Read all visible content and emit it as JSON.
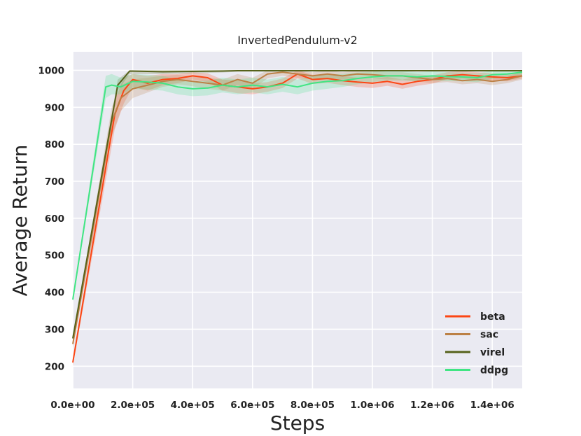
{
  "chart_data": {
    "type": "line",
    "title": "InvertedPendulum-v2",
    "xlabel": "Steps",
    "ylabel": "Average Return",
    "xlim": [
      0,
      1500000
    ],
    "ylim": [
      140,
      1050
    ],
    "xticks": [
      0,
      200000,
      400000,
      600000,
      800000,
      1000000,
      1200000,
      1400000
    ],
    "xtick_labels": [
      "0.0e+00",
      "2.0e+05",
      "4.0e+05",
      "6.0e+05",
      "8.0e+05",
      "1.0e+06",
      "1.2e+06",
      "1.4e+06"
    ],
    "yticks": [
      200,
      300,
      400,
      500,
      600,
      700,
      800,
      900,
      1000
    ],
    "ytick_labels": [
      "200",
      "300",
      "400",
      "500",
      "600",
      "700",
      "800",
      "900",
      "1000"
    ],
    "grid": true,
    "legend_position": "bottom-right",
    "series": [
      {
        "name": "beta",
        "color": "#fc4614",
        "x": [
          0,
          140000,
          170000,
          200000,
          250000,
          300000,
          350000,
          400000,
          450000,
          500000,
          550000,
          600000,
          650000,
          700000,
          750000,
          800000,
          850000,
          900000,
          950000,
          1000000,
          1050000,
          1100000,
          1150000,
          1200000,
          1250000,
          1300000,
          1350000,
          1400000,
          1450000,
          1500000
        ],
        "y": [
          210,
          880,
          945,
          975,
          965,
          975,
          978,
          985,
          980,
          960,
          955,
          950,
          955,
          965,
          990,
          975,
          978,
          972,
          968,
          965,
          970,
          962,
          970,
          975,
          985,
          988,
          985,
          982,
          980,
          985
        ],
        "lower": [
          200,
          840,
          910,
          955,
          945,
          960,
          965,
          975,
          968,
          945,
          938,
          935,
          942,
          952,
          978,
          963,
          966,
          960,
          955,
          952,
          958,
          950,
          958,
          964,
          975,
          978,
          975,
          972,
          970,
          978
        ],
        "upper": [
          220,
          920,
          980,
          990,
          985,
          990,
          990,
          995,
          992,
          975,
          972,
          965,
          968,
          978,
          1000,
          988,
          990,
          985,
          980,
          978,
          982,
          975,
          982,
          986,
          995,
          998,
          995,
          992,
          990,
          992
        ]
      },
      {
        "name": "sac",
        "color": "#bc8146",
        "x": [
          0,
          130000,
          160000,
          200000,
          250000,
          300000,
          350000,
          400000,
          450000,
          500000,
          550000,
          600000,
          650000,
          700000,
          750000,
          800000,
          850000,
          900000,
          950000,
          1000000,
          1050000,
          1100000,
          1150000,
          1200000,
          1250000,
          1300000,
          1350000,
          1400000,
          1450000,
          1500000
        ],
        "y": [
          260,
          860,
          925,
          950,
          960,
          970,
          975,
          970,
          965,
          960,
          975,
          965,
          990,
          995,
          990,
          985,
          990,
          985,
          990,
          988,
          985,
          985,
          980,
          975,
          978,
          972,
          975,
          970,
          975,
          985
        ],
        "lower": [
          250,
          820,
          890,
          925,
          940,
          955,
          962,
          957,
          950,
          945,
          960,
          950,
          978,
          985,
          980,
          975,
          980,
          975,
          980,
          978,
          975,
          975,
          970,
          965,
          968,
          962,
          965,
          960,
          965,
          975
        ],
        "upper": [
          270,
          900,
          960,
          975,
          980,
          985,
          988,
          983,
          980,
          975,
          990,
          980,
          1000,
          1000,
          1000,
          995,
          1000,
          995,
          1000,
          998,
          995,
          995,
          990,
          985,
          988,
          982,
          985,
          980,
          985,
          995
        ]
      },
      {
        "name": "virel",
        "color": "#56621b",
        "x": [
          0,
          150000,
          190000,
          250000,
          300000,
          400000,
          500000,
          550000,
          600000,
          700000,
          800000,
          900000,
          1000000,
          1100000,
          1200000,
          1300000,
          1400000,
          1500000
        ],
        "y": [
          275,
          960,
          998,
          997,
          996,
          997,
          998,
          999,
          999,
          999,
          999,
          999,
          999,
          999,
          999,
          999,
          999,
          999
        ],
        "lower": [
          270,
          945,
          990,
          990,
          990,
          992,
          994,
          996,
          996,
          996,
          996,
          996,
          996,
          996,
          996,
          996,
          996,
          996
        ],
        "upper": [
          280,
          975,
          1000,
          1000,
          1000,
          1000,
          1000,
          1000,
          1000,
          1000,
          1000,
          1000,
          1000,
          1000,
          1000,
          1000,
          1000,
          1000
        ]
      },
      {
        "name": "ddpg",
        "color": "#40e583",
        "x": [
          0,
          110000,
          130000,
          160000,
          200000,
          250000,
          300000,
          350000,
          400000,
          450000,
          500000,
          550000,
          600000,
          650000,
          700000,
          750000,
          800000,
          850000,
          900000,
          950000,
          1000000,
          1050000,
          1100000,
          1150000,
          1200000,
          1250000,
          1300000,
          1350000,
          1400000,
          1450000,
          1500000
        ],
        "y": [
          380,
          955,
          960,
          955,
          970,
          968,
          965,
          955,
          950,
          952,
          960,
          955,
          960,
          955,
          962,
          955,
          965,
          970,
          972,
          978,
          982,
          985,
          985,
          982,
          985,
          983,
          982,
          980,
          988,
          990,
          995
        ],
        "lower": [
          375,
          925,
          935,
          935,
          950,
          948,
          945,
          935,
          930,
          932,
          940,
          935,
          940,
          935,
          942,
          935,
          945,
          950,
          955,
          962,
          968,
          972,
          972,
          970,
          973,
          971,
          970,
          968,
          977,
          980,
          988
        ],
        "upper": [
          385,
          985,
          990,
          980,
          990,
          988,
          985,
          975,
          970,
          972,
          980,
          975,
          980,
          975,
          982,
          975,
          985,
          990,
          990,
          994,
          996,
          998,
          998,
          995,
          997,
          995,
          994,
          992,
          999,
          1000,
          1000
        ]
      }
    ]
  }
}
